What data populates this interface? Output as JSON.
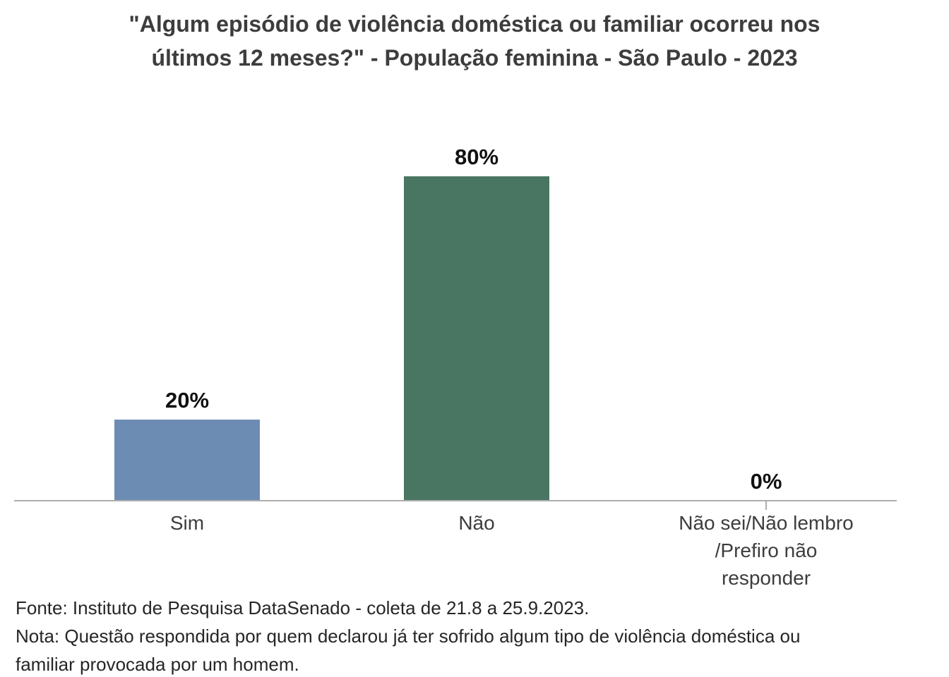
{
  "chart_data": {
    "type": "bar",
    "title": "\"Algum episódio de violência doméstica ou familiar ocorreu nos últimos 12 meses?\" - População feminina - São Paulo - 2023",
    "categories": [
      "Sim",
      "Não",
      "Não sei/Não lembro /Prefiro não responder"
    ],
    "values": [
      20,
      80,
      0
    ],
    "value_labels": [
      "20%",
      "80%",
      "0%"
    ],
    "colors": [
      "#6d8cb4",
      "#497663",
      "#6d8cb4"
    ],
    "xlabel": "",
    "ylabel": "",
    "ylim": [
      0,
      90
    ],
    "grid": false,
    "legend": "none"
  },
  "footer": {
    "source": "Fonte: Instituto de Pesquisa DataSenado - coleta de 21.8 a 25.9.2023.",
    "note": "Nota: Questão respondida por quem declarou já ter sofrido algum tipo de violência doméstica ou familiar provocada por um homem."
  }
}
